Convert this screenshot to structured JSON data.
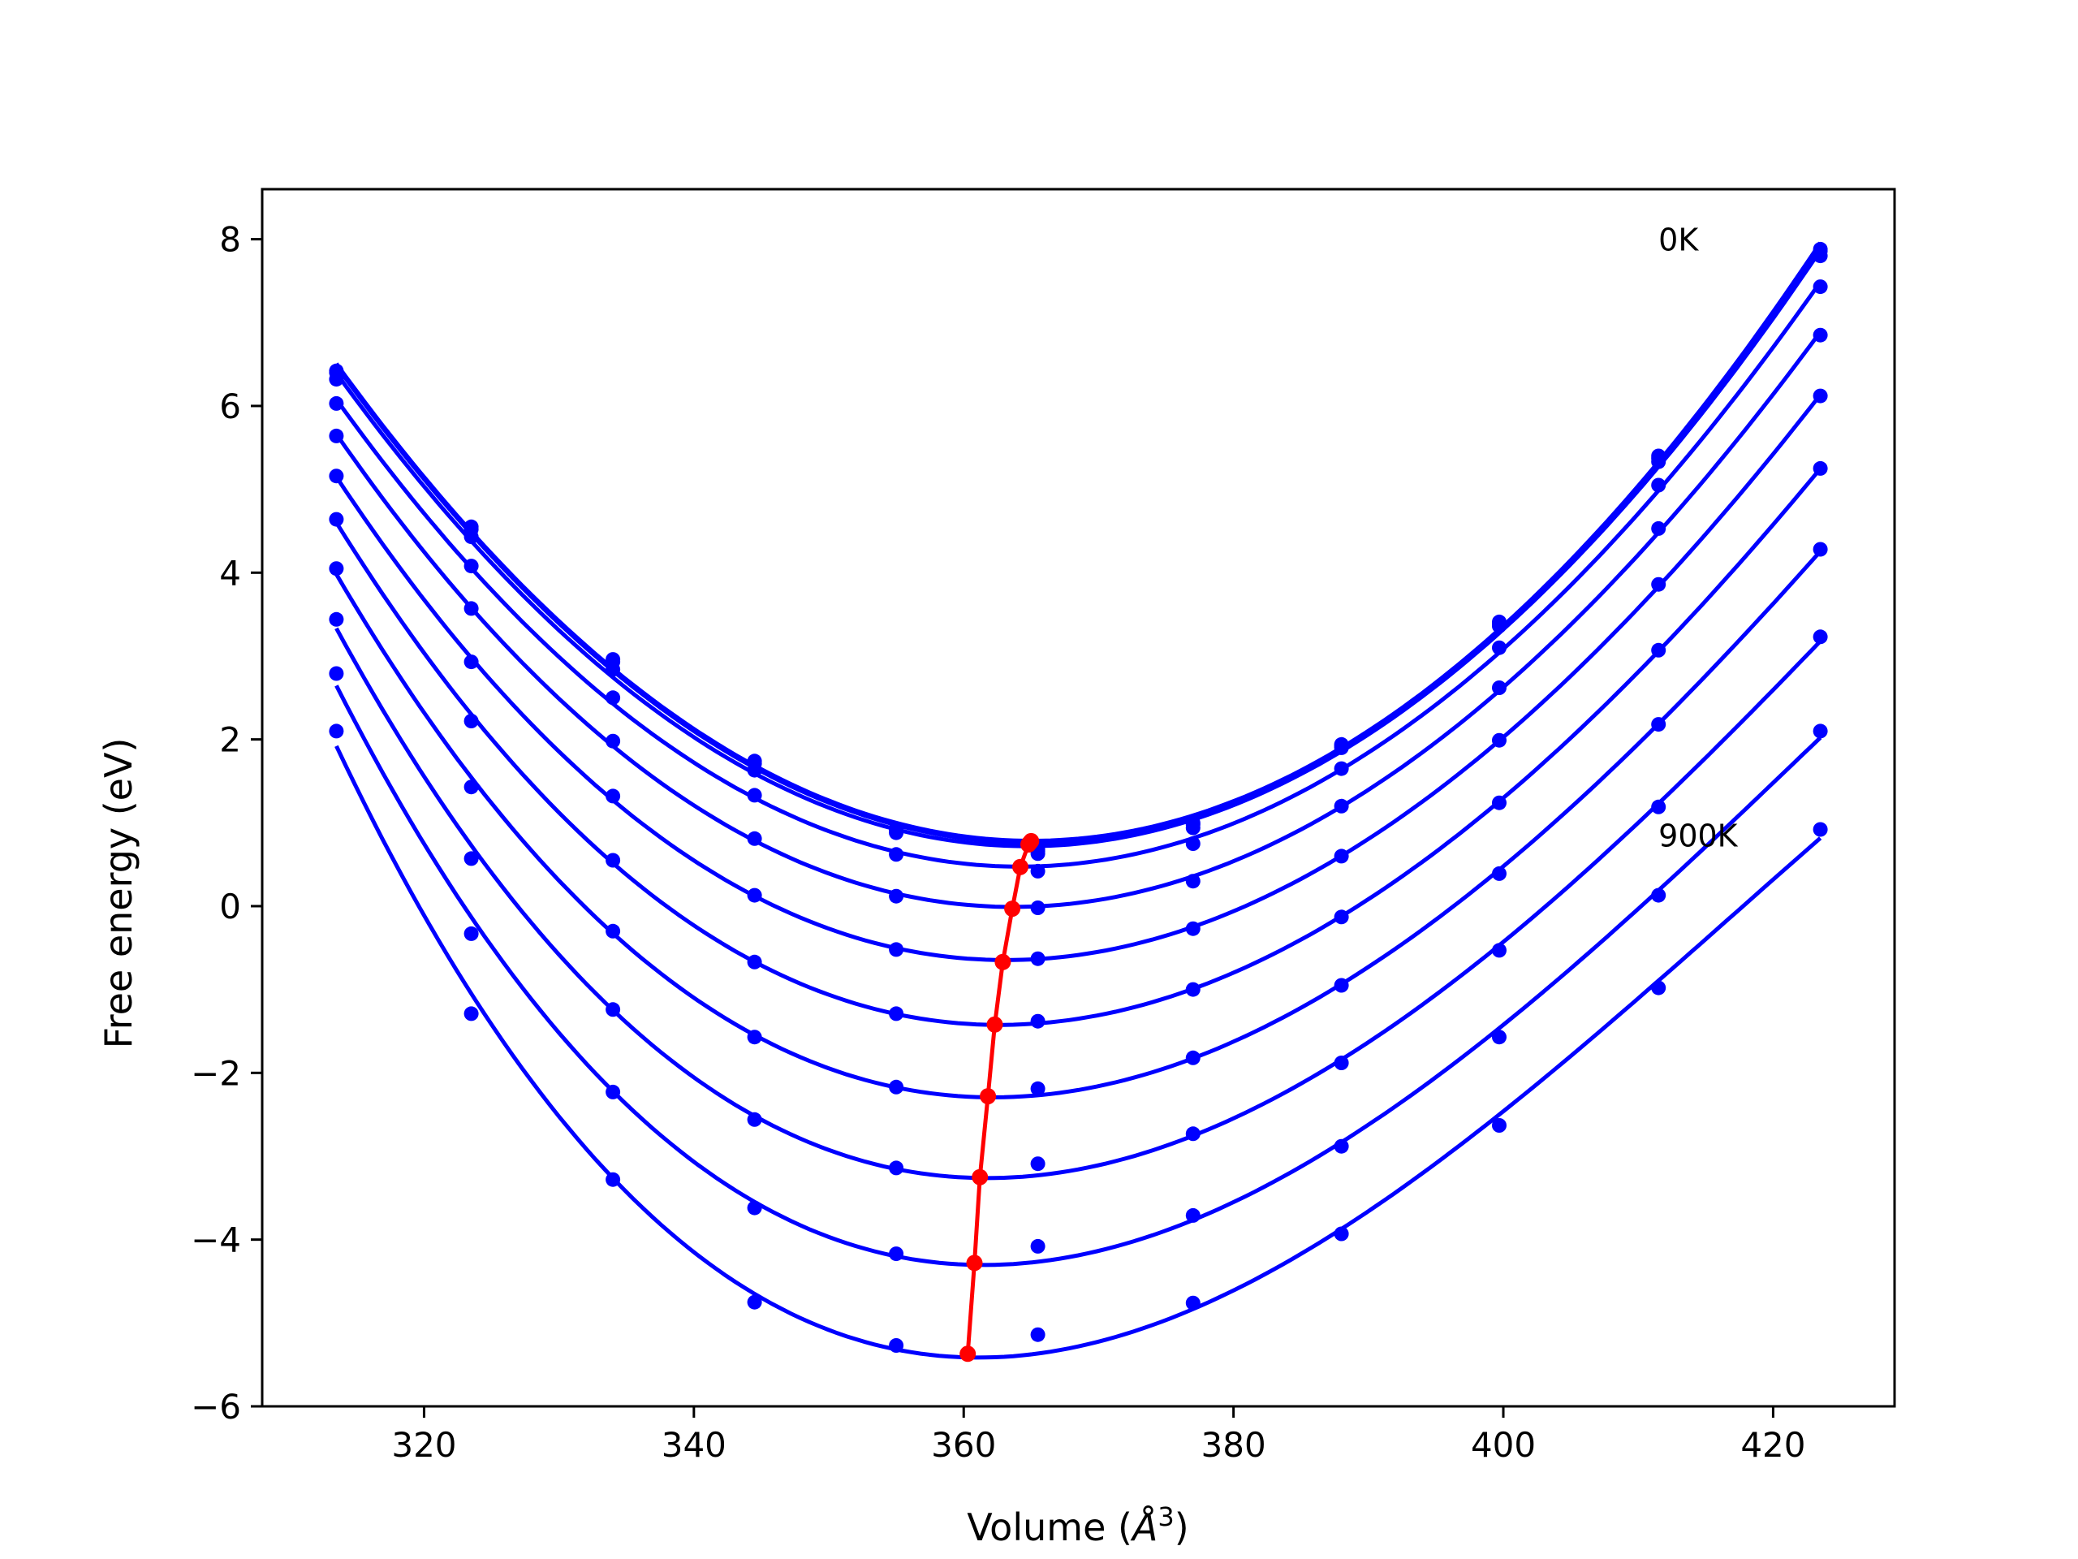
{
  "chart_data": {
    "type": "line",
    "xlabel": "Volume (Å3)",
    "xlabel_main": "Volume (",
    "xlabel_symbol": "Å",
    "xlabel_sup": "3",
    "xlabel_close": ")",
    "ylabel": "Free energy (eV)",
    "xlim": [
      308,
      429
    ],
    "ylim": [
      -6.0,
      8.6
    ],
    "xticks": [
      320,
      340,
      360,
      380,
      400,
      420
    ],
    "yticks": [
      -6,
      -4,
      -2,
      0,
      2,
      4,
      6,
      8
    ],
    "xtick_labels": [
      "320",
      "340",
      "360",
      "380",
      "400",
      "420"
    ],
    "ytick_labels": [
      "−6",
      "−4",
      "−2",
      "0",
      "2",
      "4",
      "6",
      "8"
    ],
    "grid": false,
    "legend": "none",
    "annotations": [
      {
        "text": "0K",
        "x": 411.5,
        "y": 8.0
      },
      {
        "text": "900K",
        "x": 411.5,
        "y": 0.85
      }
    ],
    "colors": {
      "series": "#0000ff",
      "minimum_path": "#ff0000",
      "axes": "#000000"
    },
    "x_points": [
      313.5,
      323.5,
      334.0,
      344.5,
      355.0,
      365.5,
      377.0,
      388.0,
      399.7,
      411.5,
      423.5
    ],
    "series": [
      {
        "values": [
          6.42,
          4.55,
          2.96,
          1.74,
          0.93,
          0.68,
          1.0,
          1.94,
          3.41,
          5.4,
          7.88
        ],
        "min_x": 365.0,
        "min_y": 0.78
      },
      {
        "values": [
          6.4,
          4.52,
          2.93,
          1.71,
          0.91,
          0.66,
          0.98,
          1.92,
          3.38,
          5.37,
          7.86
        ],
        "min_x": 364.9,
        "min_y": 0.76
      },
      {
        "values": [
          6.32,
          4.43,
          2.84,
          1.63,
          0.88,
          0.63,
          0.94,
          1.9,
          3.36,
          5.33,
          7.8
        ],
        "min_x": 364.8,
        "min_y": 0.74
      },
      {
        "values": [
          6.03,
          4.08,
          2.5,
          1.33,
          0.62,
          0.42,
          0.75,
          1.65,
          3.1,
          5.05,
          7.43
        ],
        "min_x": 364.2,
        "min_y": 0.47
      },
      {
        "values": [
          5.64,
          3.57,
          1.98,
          0.81,
          0.12,
          -0.02,
          0.3,
          1.2,
          2.62,
          4.53,
          6.85
        ],
        "min_x": 363.6,
        "min_y": -0.03
      },
      {
        "values": [
          5.16,
          2.93,
          1.32,
          0.13,
          -0.52,
          -0.63,
          -0.27,
          0.6,
          1.99,
          3.86,
          6.12
        ],
        "min_x": 362.9,
        "min_y": -0.67
      },
      {
        "values": [
          4.64,
          2.22,
          0.55,
          -0.67,
          -1.29,
          -1.38,
          -1.0,
          -0.13,
          1.24,
          3.07,
          5.25
        ],
        "min_x": 362.3,
        "min_y": -1.42
      },
      {
        "values": [
          4.05,
          1.43,
          -0.3,
          -1.57,
          -2.17,
          -2.19,
          -1.82,
          -0.95,
          0.39,
          2.18,
          4.28
        ],
        "min_x": 361.8,
        "min_y": -2.28
      },
      {
        "values": [
          3.44,
          0.57,
          -1.24,
          -2.56,
          -3.14,
          -3.09,
          -2.73,
          -1.88,
          -0.53,
          1.19,
          3.23
        ],
        "min_x": 361.2,
        "min_y": -3.25
      },
      {
        "values": [
          2.79,
          -0.33,
          -2.23,
          -3.62,
          -4.17,
          -4.08,
          -3.71,
          -2.88,
          -1.57,
          0.13,
          2.1
        ],
        "min_x": 360.8,
        "min_y": -4.28
      },
      {
        "values": [
          2.1,
          -1.29,
          -3.28,
          -4.75,
          -5.27,
          -5.14,
          -4.76,
          -3.93,
          -2.63,
          -0.98,
          0.92
        ],
        "min_x": 360.3,
        "min_y": -5.37
      }
    ]
  }
}
